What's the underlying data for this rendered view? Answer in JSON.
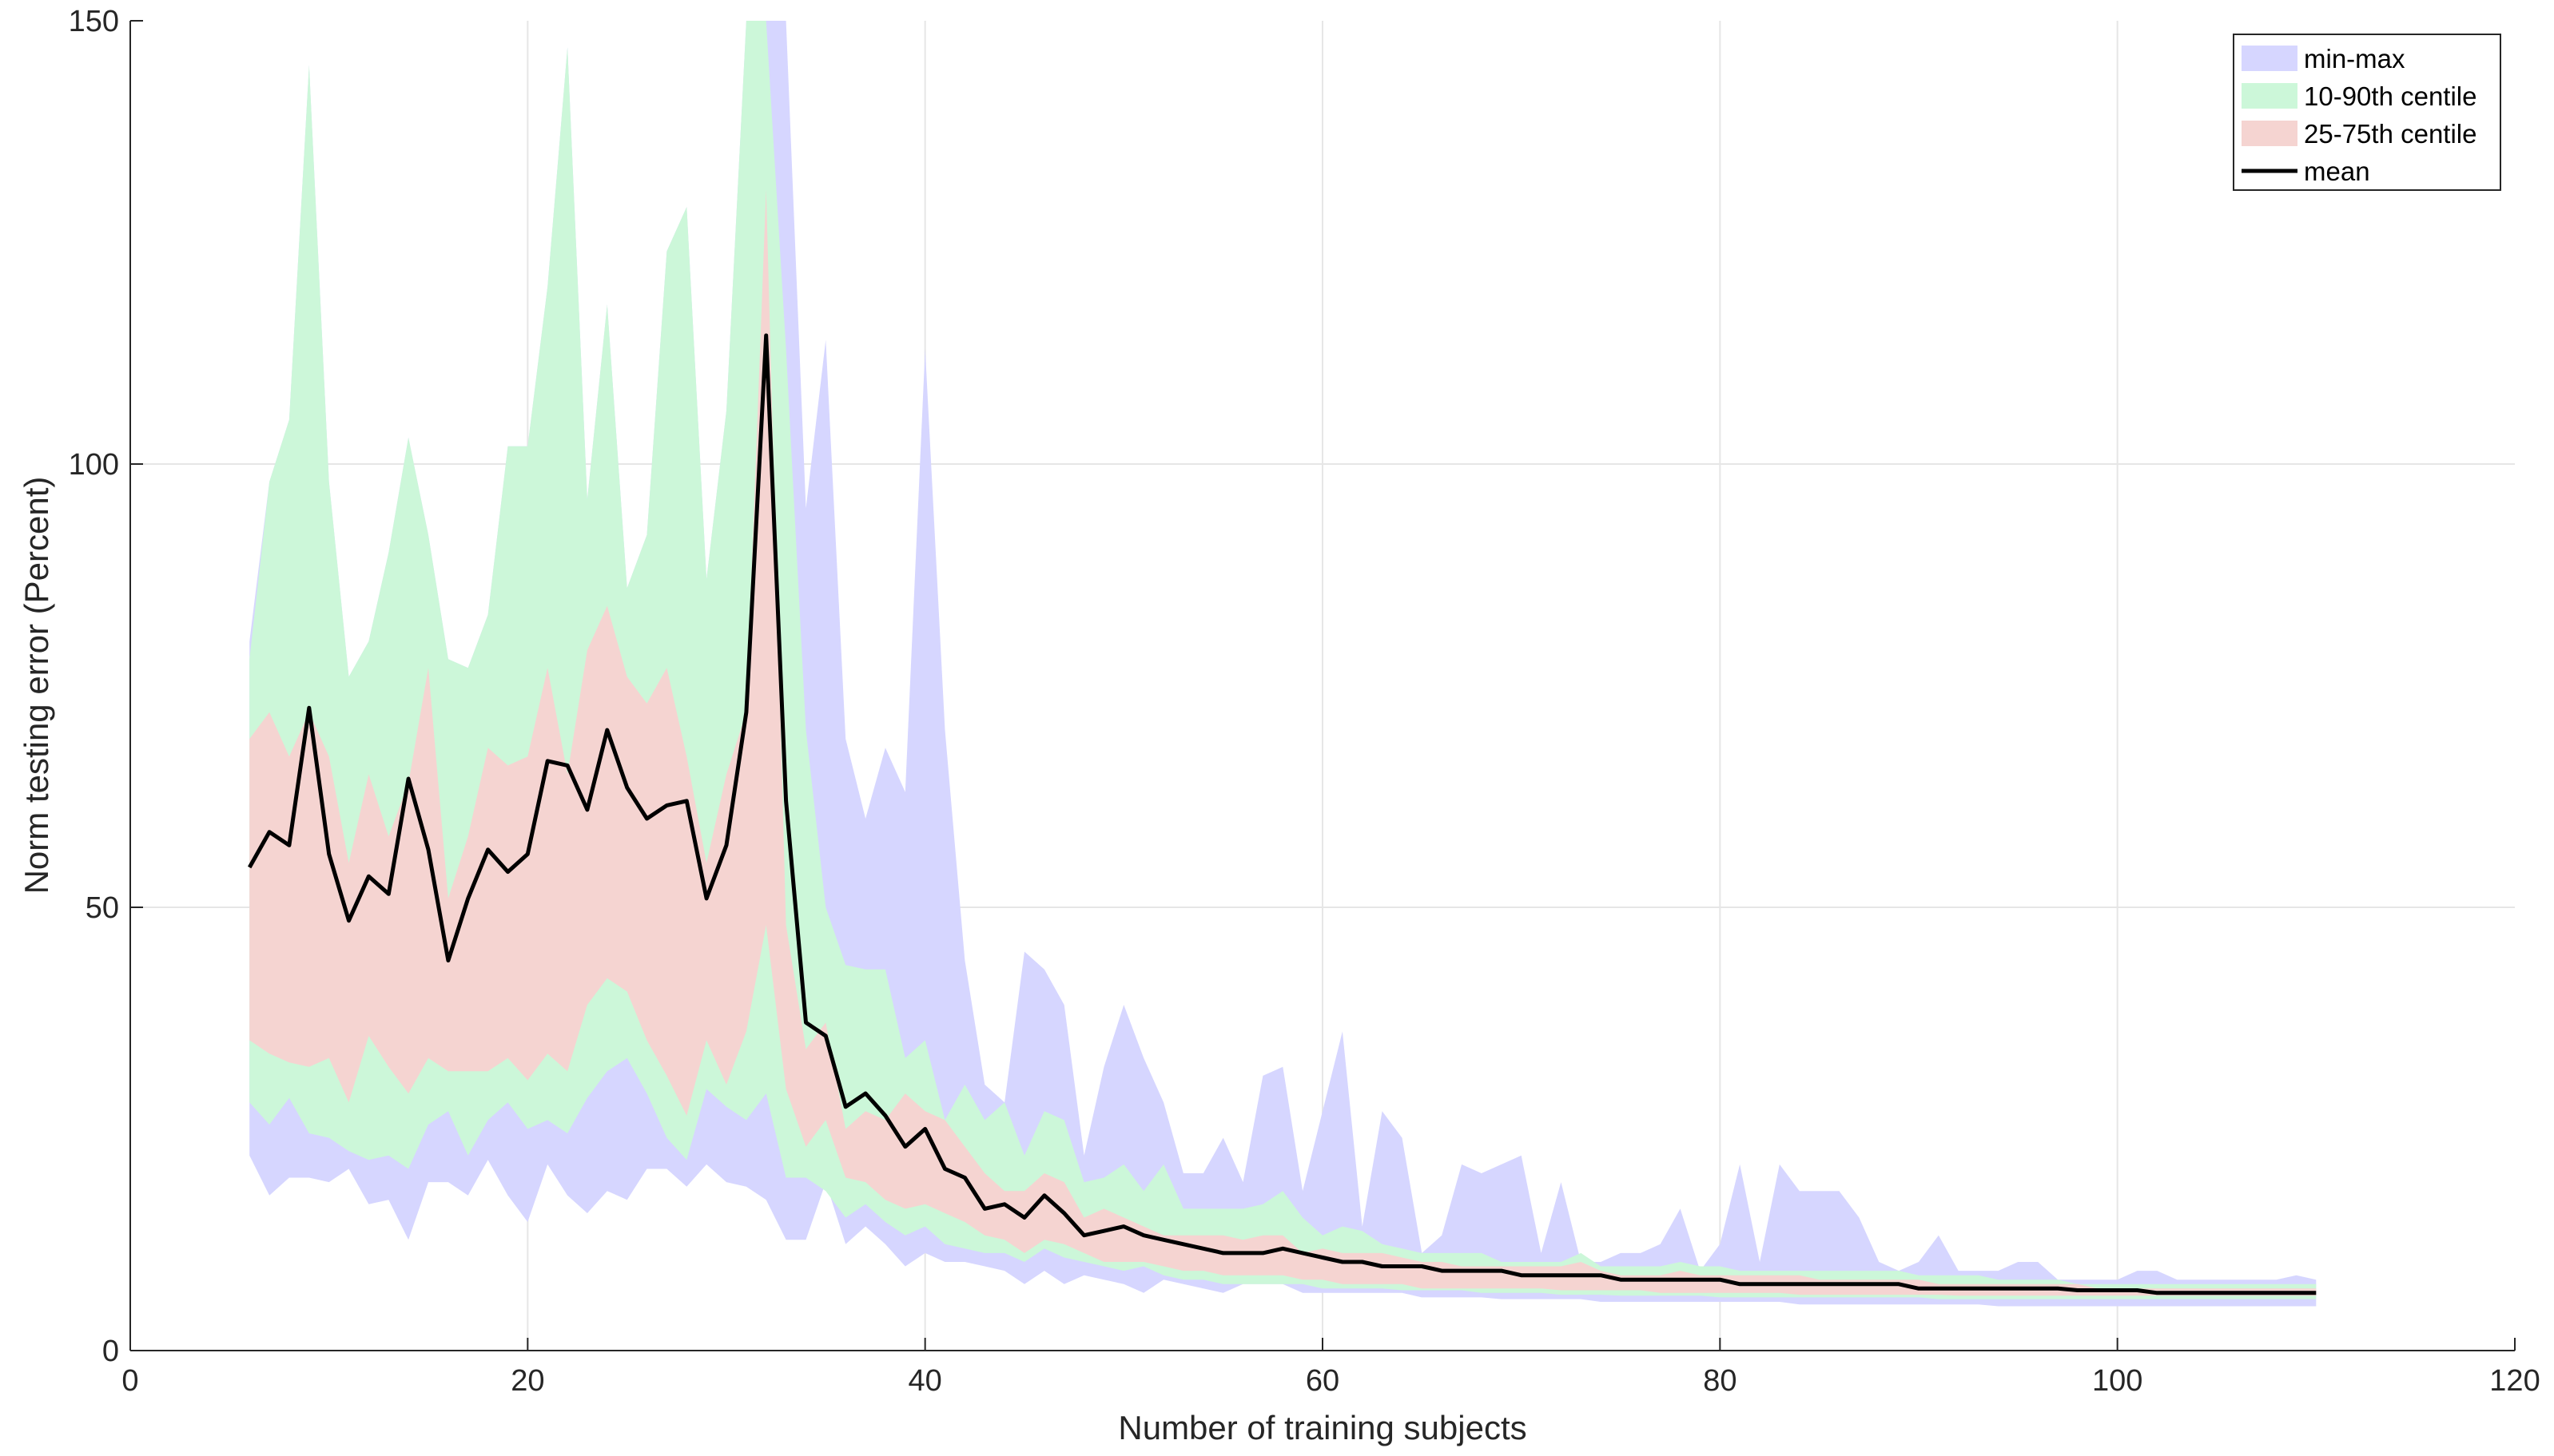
{
  "chart_data": {
    "type": "area",
    "title": "",
    "xlabel": "Number of training subjects",
    "ylabel": "Norm testing error (Percent)",
    "xlim": [
      0,
      120
    ],
    "ylim": [
      0,
      150
    ],
    "xticks": [
      0,
      20,
      40,
      60,
      80,
      100,
      120
    ],
    "yticks": [
      0,
      50,
      100,
      150
    ],
    "grid": true,
    "legend_position": "top-right",
    "colors": {
      "min-max": "#d6d6ff",
      "10-90th": "#ccf7d9",
      "25-75th": "#f5d4d1",
      "mean": "#000000",
      "grid": "#e6e6e6",
      "axis": "#262626"
    },
    "legend": [
      {
        "key": "minmax",
        "label": "min-max"
      },
      {
        "key": "p10p90",
        "label": "10-90th centile"
      },
      {
        "key": "p25p75",
        "label": "25-75th centile"
      },
      {
        "key": "mean",
        "label": "mean"
      }
    ],
    "x": [
      6,
      7,
      8,
      9,
      10,
      11,
      12,
      13,
      14,
      15,
      16,
      17,
      18,
      19,
      20,
      21,
      22,
      23,
      24,
      25,
      26,
      27,
      28,
      29,
      30,
      31,
      32,
      33,
      34,
      35,
      36,
      37,
      38,
      39,
      40,
      41,
      42,
      43,
      44,
      45,
      46,
      47,
      48,
      49,
      50,
      51,
      52,
      53,
      54,
      55,
      56,
      57,
      58,
      59,
      60,
      61,
      62,
      63,
      64,
      65,
      66,
      67,
      68,
      69,
      70,
      71,
      72,
      73,
      74,
      75,
      76,
      77,
      78,
      79,
      80,
      81,
      82,
      83,
      84,
      85,
      86,
      87,
      88,
      89,
      90,
      91,
      92,
      93,
      94,
      95,
      96,
      97,
      98,
      99,
      100,
      101,
      102,
      103,
      104,
      105,
      106,
      107,
      108,
      109,
      110
    ],
    "series": [
      {
        "name": "min-max",
        "lower": [
          22,
          17.5,
          19.5,
          19.5,
          19,
          20.5,
          16.5,
          17,
          12.5,
          19,
          19,
          17.5,
          21.5,
          17.5,
          14.5,
          21,
          17.5,
          15.5,
          18,
          17,
          20.5,
          20.5,
          18.5,
          21,
          19,
          18.5,
          17,
          12.5,
          12.5,
          19,
          12,
          14,
          12,
          9.5,
          11,
          10,
          10,
          9.5,
          9,
          7.5,
          9,
          7.5,
          8.5,
          8,
          7.5,
          6.5,
          8,
          7.5,
          7,
          6.5,
          7.5,
          7.5,
          7.5,
          6.5,
          6.5,
          6.5,
          6.5,
          6.5,
          6.5,
          6,
          6,
          6,
          6,
          5.8,
          5.8,
          5.8,
          5.8,
          5.8,
          5.5,
          5.5,
          5.5,
          5.5,
          5.5,
          5.5,
          5.5,
          5.5,
          5.5,
          5.5,
          5.2,
          5.2,
          5.2,
          5.2,
          5.2,
          5.2,
          5.2,
          5.2,
          5.2,
          5.2,
          5,
          5,
          5,
          5,
          5,
          5,
          5,
          5,
          5,
          5,
          5,
          5,
          5,
          5,
          5,
          5,
          5
        ],
        "upper": [
          80,
          98,
          105,
          145,
          98,
          76,
          80,
          90,
          103,
          92,
          78,
          77,
          83,
          102,
          102,
          120,
          147,
          96,
          118,
          86,
          92,
          124,
          129,
          87,
          106,
          150,
          150,
          150,
          95,
          114,
          69,
          60,
          68,
          63,
          113,
          70,
          44,
          30,
          28,
          45,
          43,
          39,
          22,
          32,
          39,
          33,
          28,
          20,
          20,
          24,
          19,
          31,
          32,
          18,
          27,
          36,
          14,
          27,
          24,
          11,
          13,
          21,
          20,
          21,
          22,
          11,
          19,
          10,
          10,
          11,
          11,
          12,
          16,
          9,
          12,
          21,
          10,
          21,
          18,
          18,
          18,
          15,
          10,
          9,
          10,
          13,
          9,
          9,
          9,
          10,
          10,
          8,
          8,
          8,
          8,
          9,
          9,
          8,
          8,
          8,
          8,
          8,
          8,
          8.5,
          8
        ]
      },
      {
        "name": "10-90th centile",
        "lower": [
          28,
          25.5,
          28.5,
          24.5,
          24,
          22.5,
          21.5,
          22,
          20.5,
          25.5,
          27,
          22,
          26,
          28,
          25,
          26,
          24.5,
          28.5,
          31.5,
          33,
          29,
          24,
          21.5,
          29.5,
          27.5,
          26,
          29,
          19.5,
          19.5,
          18,
          15,
          16.5,
          14.5,
          13,
          14,
          12,
          11.5,
          11,
          11,
          10,
          11.5,
          10.5,
          10,
          9.5,
          9,
          9.5,
          8.5,
          8,
          8,
          7.5,
          7.5,
          7.5,
          7.5,
          7.5,
          7,
          7,
          7,
          7,
          6.8,
          6.8,
          6.8,
          6.8,
          6.5,
          6.5,
          6.5,
          6.5,
          6.3,
          6.3,
          6.3,
          6.2,
          6.2,
          6.2,
          6.2,
          6.2,
          6,
          6,
          6,
          6,
          6,
          6,
          6,
          6,
          6,
          6,
          6,
          5.8,
          5.8,
          5.8,
          5.8,
          5.8,
          5.8,
          5.8,
          5.8,
          5.8,
          5.8,
          5.8,
          5.8,
          5.8,
          5.8,
          5.8,
          5.8,
          5.8,
          5.8,
          5.8,
          5.8
        ],
        "upper": [
          78,
          98,
          105,
          145,
          98,
          76,
          80,
          90,
          103,
          92,
          78,
          77,
          83,
          102,
          102,
          120,
          147,
          96,
          118,
          86,
          92,
          124,
          129,
          87,
          106,
          150,
          150,
          113,
          70,
          50,
          43.5,
          43,
          43,
          33,
          35,
          26,
          30,
          26,
          28,
          22,
          27,
          26,
          19,
          19.5,
          21,
          18,
          21,
          16,
          16,
          16,
          16,
          16.5,
          18,
          15,
          13,
          14,
          13.5,
          12,
          11.5,
          11,
          11,
          11,
          11,
          10,
          10,
          10,
          10,
          11,
          9.5,
          9.5,
          9.5,
          9.5,
          10,
          9.5,
          9.5,
          9,
          9,
          9,
          9,
          9,
          9,
          9,
          9,
          9,
          8.5,
          8.5,
          8.5,
          8.5,
          8,
          8,
          8,
          8,
          7.5,
          7.5,
          7.5,
          7.5,
          7.5,
          7.5,
          7.5,
          7.5,
          7.5,
          7.5,
          7.5,
          7.5,
          7.5
        ]
      },
      {
        "name": "25-75th centile",
        "lower": [
          35,
          33.5,
          32.5,
          32,
          33,
          28,
          35.5,
          32,
          29,
          33,
          31.5,
          31.5,
          31.5,
          33,
          30.5,
          33.5,
          31.5,
          39,
          42,
          40.5,
          35,
          31,
          26.5,
          35,
          30,
          36,
          48,
          29.5,
          23,
          26,
          19.5,
          19,
          17,
          16,
          16.5,
          15.5,
          14.5,
          13,
          12.5,
          11,
          12.5,
          12,
          11,
          10,
          10,
          10,
          9.5,
          9,
          9,
          8.5,
          8.5,
          8.5,
          8.5,
          8,
          8,
          7.5,
          7.5,
          7.5,
          7.5,
          7,
          7,
          7,
          7,
          7,
          7,
          7,
          6.8,
          6.8,
          6.8,
          6.8,
          6.8,
          6.5,
          6.5,
          6.5,
          6.5,
          6.5,
          6.5,
          6.5,
          6.3,
          6.3,
          6.3,
          6.3,
          6.3,
          6.3,
          6.3,
          6.3,
          6.2,
          6.2,
          6.2,
          6.2,
          6.2,
          6.2,
          6.2,
          6.2,
          6.2,
          6.2,
          6.2,
          6.2,
          6.2,
          6.2,
          6.2,
          6.2,
          6.2,
          6.2,
          6.2
        ],
        "upper": [
          69,
          72,
          67,
          72,
          67,
          55,
          65,
          58,
          64,
          77,
          51,
          58,
          68,
          66,
          67,
          77,
          65,
          79,
          84,
          76,
          73,
          77,
          67,
          55,
          65,
          72,
          131,
          48,
          34,
          37,
          25,
          27,
          26,
          29,
          27,
          26,
          23,
          20,
          18,
          18,
          20,
          19,
          15,
          16,
          15,
          14,
          13,
          13,
          13,
          13,
          12.5,
          13,
          13,
          11,
          11.5,
          11,
          11,
          11,
          10.5,
          10,
          10,
          9.5,
          9.5,
          9.5,
          9.5,
          9.5,
          9.5,
          10,
          9,
          8.5,
          8.5,
          8.5,
          9,
          8.5,
          8.5,
          8.5,
          8.5,
          8.5,
          8.5,
          8,
          8,
          8,
          8,
          8,
          8,
          7.5,
          7.5,
          7.5,
          7.5,
          7.5,
          7.5,
          7.5,
          7.5,
          7,
          7,
          7,
          7,
          7,
          7,
          7,
          7,
          7,
          7,
          7,
          7
        ]
      },
      {
        "name": "mean",
        "values": [
          54.5,
          58.5,
          57,
          72.5,
          56,
          48.5,
          53.5,
          51.5,
          64.5,
          56.5,
          44,
          51,
          56.5,
          54,
          56,
          66.5,
          66,
          61,
          70,
          63.5,
          60,
          61.5,
          62,
          51,
          57,
          72,
          114.5,
          62,
          37,
          35.5,
          27.5,
          29,
          26.5,
          23,
          25,
          20.5,
          19.5,
          16,
          16.5,
          15,
          17.5,
          15.5,
          13,
          13.5,
          14,
          13,
          12.5,
          12,
          11.5,
          11,
          11,
          11,
          11.5,
          11,
          10.5,
          10,
          10,
          9.5,
          9.5,
          9.5,
          9,
          9,
          9,
          9,
          8.5,
          8.5,
          8.5,
          8.5,
          8.5,
          8,
          8,
          8,
          8,
          8,
          8,
          7.5,
          7.5,
          7.5,
          7.5,
          7.5,
          7.5,
          7.5,
          7.5,
          7.5,
          7,
          7,
          7,
          7,
          7,
          7,
          7,
          7,
          6.8,
          6.8,
          6.8,
          6.8,
          6.5,
          6.5,
          6.5,
          6.5,
          6.5,
          6.5,
          6.5,
          6.5,
          6.5
        ]
      }
    ]
  }
}
